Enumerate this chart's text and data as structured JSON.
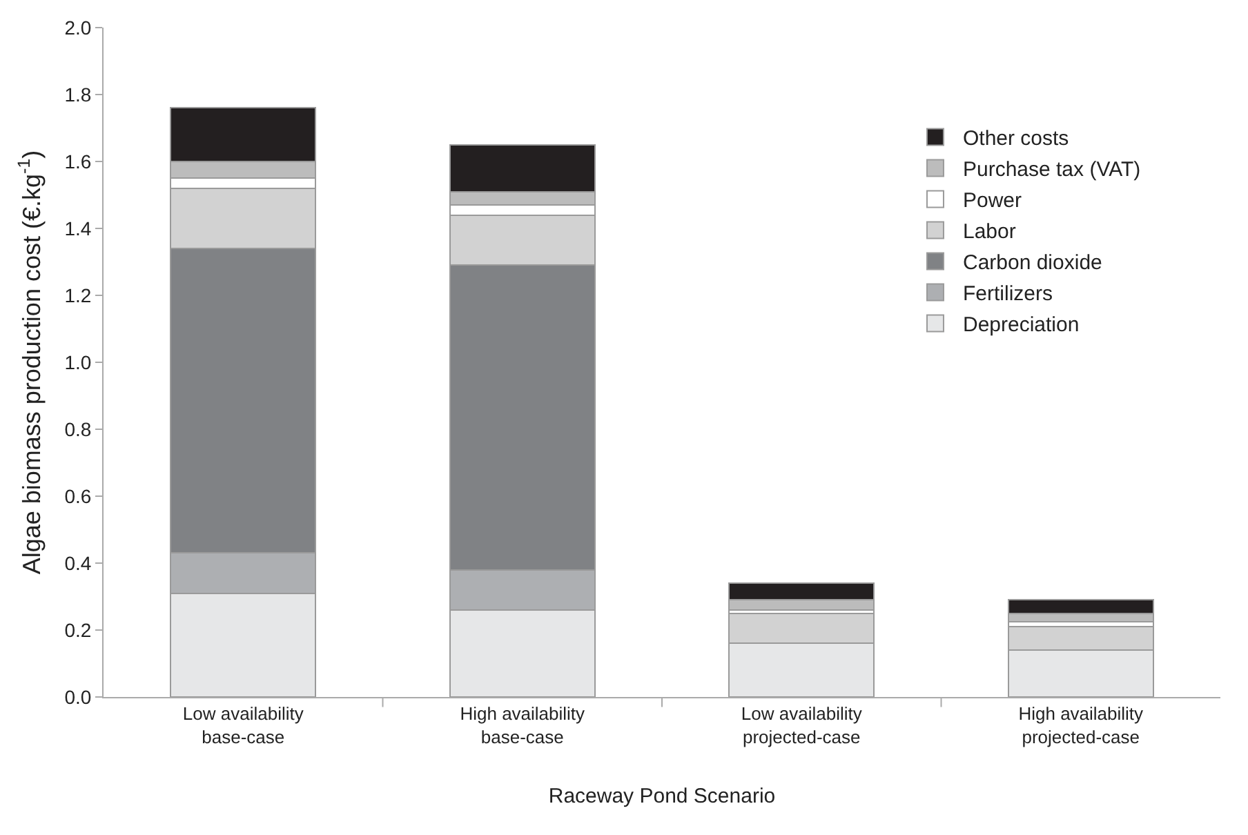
{
  "chart_data": {
    "type": "bar",
    "stacked": true,
    "xlabel": "Raceway Pond Scenario",
    "ylabel": "Algae biomass production cost (€.kg$^{-1}$)",
    "categories": [
      "Low availability base-case",
      "High availability base-case",
      "Low availability projected-case",
      "High availability projected-case"
    ],
    "series": [
      {
        "name": "Depreciation",
        "color": "#e6e7e8",
        "values": [
          0.31,
          0.26,
          0.16,
          0.14
        ]
      },
      {
        "name": "Fertilizers",
        "color": "#adafb2",
        "values": [
          0.12,
          0.12,
          0,
          0
        ]
      },
      {
        "name": "Carbon dioxide",
        "color": "#808285",
        "values": [
          0.91,
          0.91,
          0,
          0
        ]
      },
      {
        "name": "Labor",
        "color": "#d2d2d2",
        "values": [
          0.18,
          0.15,
          0.09,
          0.07
        ]
      },
      {
        "name": "Power",
        "color": "#ffffff",
        "values": [
          0.03,
          0.03,
          0.01,
          0.015
        ]
      },
      {
        "name": "Purchase tax (VAT)",
        "color": "#bcbcbc",
        "values": [
          0.05,
          0.04,
          0.03,
          0.025
        ]
      },
      {
        "name": "Other costs",
        "color": "#231f20",
        "values": [
          0.16,
          0.14,
          0.05,
          0.04
        ]
      }
    ],
    "ylim": [
      0,
      2.0
    ],
    "yticks": [
      {
        "value": 0,
        "label": "0.0"
      },
      {
        "value": 0.2,
        "label": "0.2"
      },
      {
        "value": 0.4,
        "label": "0.4"
      },
      {
        "value": 0.6,
        "label": "0.6"
      },
      {
        "value": 0.8,
        "label": "0.8"
      },
      {
        "value": 1.0,
        "label": "1.0"
      },
      {
        "value": 1.2,
        "label": "1.2"
      },
      {
        "value": 1.4,
        "label": "1.4"
      },
      {
        "value": 1.6,
        "label": "1.6"
      },
      {
        "value": 1.8,
        "label": "1.8"
      },
      {
        "value": 2.0,
        "label": "2.0"
      }
    ],
    "grid": false,
    "legend": "top right"
  }
}
